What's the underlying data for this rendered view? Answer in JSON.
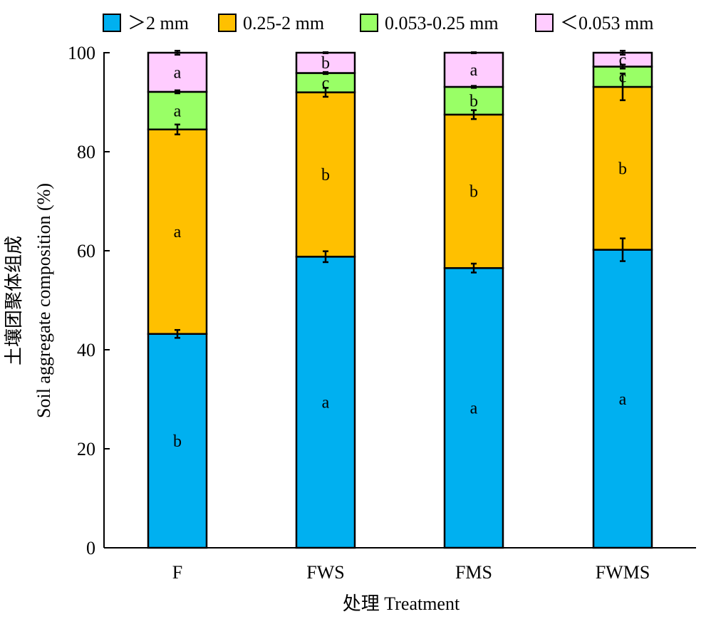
{
  "chart_data": {
    "type": "bar",
    "stacked": true,
    "title": "",
    "ylabel_cn": "土壤团聚体组成",
    "ylabel": "Soil aggregate composition (%)",
    "xlabel": "处理 Treatment",
    "ylim": [
      0,
      100
    ],
    "yticks": [
      0,
      20,
      40,
      60,
      80,
      100
    ],
    "grid": false,
    "legend_position": "top",
    "categories": [
      "F",
      "FWS",
      "FMS",
      "FWMS"
    ],
    "series": [
      {
        "name": "＞2 mm",
        "color": "#00B0F0",
        "values": [
          43.2,
          58.8,
          56.5,
          60.2
        ],
        "errors": [
          0.8,
          1.1,
          0.9,
          2.3
        ],
        "letters": [
          "b",
          "a",
          "a",
          "a"
        ]
      },
      {
        "name": "0.25-2 mm",
        "color": "#FFC000",
        "values": [
          41.3,
          33.2,
          31.0,
          32.9
        ],
        "errors": [
          1.0,
          0.9,
          0.9,
          2.7
        ],
        "letters": [
          "a",
          "b",
          "b",
          "b"
        ]
      },
      {
        "name": "0.053-0.25 mm",
        "color": "#99FF66",
        "values": [
          7.6,
          3.9,
          5.6,
          4.1
        ],
        "errors": [
          0.3,
          0.2,
          0.2,
          0.4
        ],
        "letters": [
          "a",
          "c",
          "b",
          "c"
        ]
      },
      {
        "name": "＜0.053 mm",
        "color": "#FFCCFF",
        "values": [
          7.9,
          4.1,
          6.9,
          2.8
        ],
        "errors": [
          0.4,
          0.1,
          0.1,
          0.4
        ],
        "letters": [
          "a",
          "b",
          "a",
          "c"
        ]
      }
    ]
  }
}
